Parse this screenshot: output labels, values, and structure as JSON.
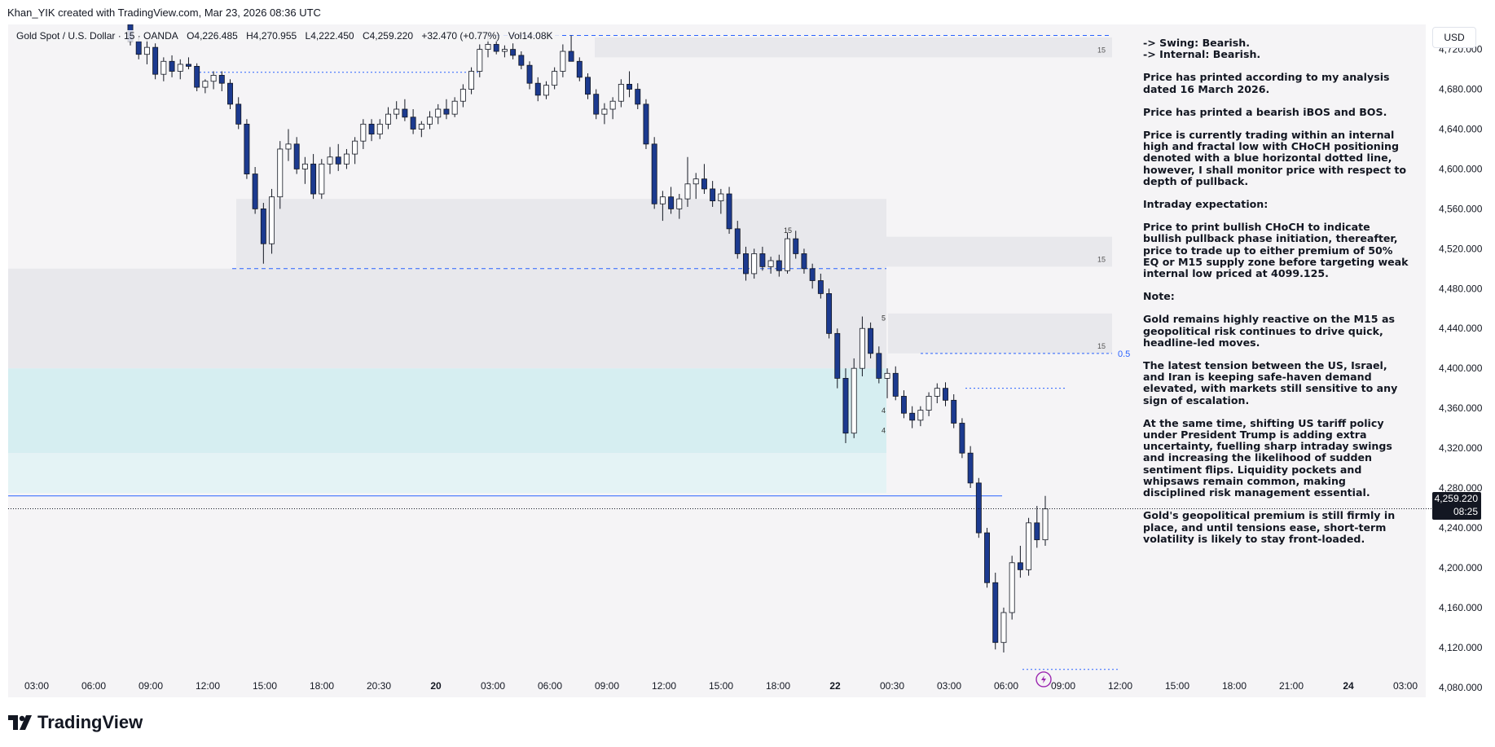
{
  "header": {
    "credit": "Khan_YIK created with TradingView.com, Mar 23, 2026 08:36 UTC"
  },
  "legend": {
    "symbol": "Gold Spot / U.S. Dollar · 15 · OANDA",
    "open": "O4,226.485",
    "high": "H4,270.955",
    "low": "L4,222.450",
    "close": "C4,259.220",
    "change": "+32.470 (+0.77%)",
    "volume": "Vol14.08K"
  },
  "currency_button": "USD",
  "price_tag": {
    "price": "4,259.220",
    "countdown": "08:25"
  },
  "footer": {
    "brand": "TradingView"
  },
  "notes": [
    "-> Swing: Bearish.\n-> Internal: Bearish.",
    "Price has printed according to my analysis dated 16 March 2026.",
    "Price has printed a bearish iBOS and BOS.",
    "Price is currently trading within an internal high and fractal low with CHoCH positioning denoted with a blue horizontal dotted line, however, I shall monitor price with respect to depth of pullback.",
    "Intraday expectation:",
    "Price to print bullish CHoCH to indicate bullish pullback phase initiation, thereafter, price to trade up to either premium of 50% EQ or M15 supply zone before targeting weak internal low priced at 4099.125.",
    "Note:",
    "Gold remains highly reactive on the M15 as geopolitical risk continues to drive quick, headline-led moves.",
    "The latest tension between the US, Israel, and Iran is keeping safe-haven demand elevated, with markets still sensitive to any sign of escalation.",
    "At the same time, shifting US tariff policy under President Trump is adding extra uncertainty, fuelling sharp intraday swings and increasing the likelihood of sudden sentiment flips. Liquidity pockets and whipsaws remain common, making disciplined risk management essential.",
    "Gold's geopolitical premium is still firmly in place, and until tensions ease, short-term volatility is likely to stay front-loaded."
  ],
  "colors": {
    "bull": "#ffffff",
    "bear": "#1c3a8f",
    "wick": "#131722",
    "zone_gray": "#e8e8ec",
    "zone_teal": "#d6eef1",
    "zone_teal_light": "#e4f3f5",
    "line_blue": "#2962ff",
    "bg": "#f5f4f6"
  },
  "chart_data": {
    "type": "candlestick",
    "timeframe": "15",
    "y_axis": {
      "ticks": [
        4080,
        4120,
        4160,
        4200,
        4240,
        4280,
        4320,
        4360,
        4400,
        4440,
        4480,
        4520,
        4560,
        4600,
        4640,
        4680,
        4720
      ],
      "tick_labels": [
        "4,080.000",
        "4,120.000",
        "4,160.000",
        "4,200.000",
        "4,240.000",
        "4,280.000",
        "4,320.000",
        "4,360.000",
        "4,400.000",
        "4,440.000",
        "4,480.000",
        "4,520.000",
        "4,560.000",
        "4,600.000",
        "4,640.000",
        "4,680.000",
        "4,720.000"
      ],
      "ylim": [
        4070,
        4745
      ]
    },
    "x_axis": {
      "tick_labels": [
        "03:00",
        "06:00",
        "09:00",
        "12:00",
        "15:00",
        "18:00",
        "20:30",
        "20",
        "03:00",
        "06:00",
        "09:00",
        "12:00",
        "15:00",
        "18:00",
        "22",
        "00:30",
        "03:00",
        "06:00",
        "09:00",
        "12:00",
        "15:00",
        "18:00",
        "21:00",
        "24",
        "03:00"
      ],
      "bold_labels": [
        "20",
        "22",
        "24"
      ]
    },
    "current_price": 4259.22,
    "annotations": [
      {
        "type": "dashed-line",
        "price": 4734,
        "label": ""
      },
      {
        "type": "dashed-line",
        "price": 4500,
        "label": ""
      },
      {
        "type": "dotted-line",
        "price": 4697,
        "label": ""
      },
      {
        "type": "dotted-line",
        "price": 4380,
        "label": ""
      },
      {
        "type": "dotted-line",
        "price": 4098,
        "label": ""
      },
      {
        "type": "solid-line",
        "price": 4272,
        "label": ""
      },
      {
        "type": "eq-line",
        "price": 4415,
        "label": "0.5"
      },
      {
        "type": "zone",
        "top": 4732,
        "bottom": 4712,
        "label": "15"
      },
      {
        "type": "zone",
        "top": 4532,
        "bottom": 4502,
        "label": "15"
      },
      {
        "type": "zone",
        "top": 4455,
        "bottom": 4415,
        "label": "15"
      },
      {
        "type": "zone",
        "top": 4570,
        "bottom": 4500,
        "label": ""
      },
      {
        "type": "zone",
        "top": 4500,
        "bottom": 4400,
        "label": ""
      },
      {
        "type": "demand-zone",
        "top": 4400,
        "bottom": 4315,
        "label": ""
      },
      {
        "type": "demand-zone",
        "top": 4315,
        "bottom": 4275,
        "label": ""
      }
    ],
    "markers": [
      {
        "price": 4536,
        "text": "15"
      },
      {
        "price": 4448,
        "text": "5"
      },
      {
        "price": 4355,
        "text": "4"
      },
      {
        "price": 4335,
        "text": "4"
      }
    ],
    "candles_ohlc": [
      [
        4745,
        4748,
        4724,
        4728
      ],
      [
        4728,
        4732,
        4710,
        4715
      ],
      [
        4715,
        4730,
        4705,
        4722
      ],
      [
        4722,
        4726,
        4690,
        4695
      ],
      [
        4695,
        4712,
        4688,
        4708
      ],
      [
        4708,
        4714,
        4692,
        4698
      ],
      [
        4698,
        4710,
        4690,
        4705
      ],
      [
        4705,
        4712,
        4700,
        4703
      ],
      [
        4703,
        4706,
        4678,
        4682
      ],
      [
        4682,
        4690,
        4676,
        4688
      ],
      [
        4688,
        4698,
        4680,
        4694
      ],
      [
        4694,
        4698,
        4678,
        4686
      ],
      [
        4686,
        4690,
        4660,
        4665
      ],
      [
        4665,
        4672,
        4640,
        4645
      ],
      [
        4645,
        4650,
        4590,
        4595
      ],
      [
        4595,
        4602,
        4555,
        4560
      ],
      [
        4560,
        4566,
        4505,
        4525
      ],
      [
        4525,
        4580,
        4515,
        4572
      ],
      [
        4572,
        4628,
        4560,
        4620
      ],
      [
        4620,
        4640,
        4608,
        4625
      ],
      [
        4625,
        4632,
        4595,
        4600
      ],
      [
        4600,
        4612,
        4585,
        4605
      ],
      [
        4605,
        4615,
        4570,
        4575
      ],
      [
        4575,
        4610,
        4570,
        4605
      ],
      [
        4605,
        4622,
        4595,
        4612
      ],
      [
        4612,
        4625,
        4598,
        4605
      ],
      [
        4605,
        4620,
        4600,
        4615
      ],
      [
        4615,
        4632,
        4605,
        4628
      ],
      [
        4628,
        4650,
        4620,
        4645
      ],
      [
        4645,
        4650,
        4628,
        4635
      ],
      [
        4635,
        4650,
        4630,
        4645
      ],
      [
        4645,
        4662,
        4640,
        4655
      ],
      [
        4655,
        4668,
        4650,
        4660
      ],
      [
        4660,
        4670,
        4648,
        4652
      ],
      [
        4652,
        4660,
        4635,
        4640
      ],
      [
        4640,
        4648,
        4632,
        4645
      ],
      [
        4645,
        4658,
        4640,
        4652
      ],
      [
        4652,
        4665,
        4645,
        4660
      ],
      [
        4660,
        4670,
        4650,
        4655
      ],
      [
        4655,
        4672,
        4652,
        4668
      ],
      [
        4668,
        4685,
        4662,
        4680
      ],
      [
        4680,
        4702,
        4675,
        4698
      ],
      [
        4698,
        4725,
        4692,
        4720
      ],
      [
        4720,
        4736,
        4712,
        4725
      ],
      [
        4725,
        4730,
        4715,
        4718
      ],
      [
        4718,
        4724,
        4712,
        4720
      ],
      [
        4720,
        4726,
        4710,
        4714
      ],
      [
        4714,
        4718,
        4700,
        4704
      ],
      [
        4704,
        4708,
        4680,
        4686
      ],
      [
        4686,
        4692,
        4668,
        4674
      ],
      [
        4674,
        4688,
        4670,
        4684
      ],
      [
        4684,
        4702,
        4680,
        4698
      ],
      [
        4698,
        4725,
        4692,
        4718
      ],
      [
        4718,
        4734,
        4712,
        4708
      ],
      [
        4708,
        4712,
        4688,
        4692
      ],
      [
        4692,
        4696,
        4670,
        4675
      ],
      [
        4675,
        4680,
        4650,
        4655
      ],
      [
        4655,
        4666,
        4645,
        4660
      ],
      [
        4660,
        4672,
        4650,
        4668
      ],
      [
        4668,
        4690,
        4662,
        4685
      ],
      [
        4685,
        4698,
        4672,
        4680
      ],
      [
        4680,
        4686,
        4660,
        4665
      ],
      [
        4665,
        4670,
        4620,
        4625
      ],
      [
        4625,
        4632,
        4560,
        4565
      ],
      [
        4565,
        4578,
        4548,
        4572
      ],
      [
        4572,
        4582,
        4555,
        4560
      ],
      [
        4560,
        4575,
        4550,
        4570
      ],
      [
        4570,
        4612,
        4562,
        4585
      ],
      [
        4585,
        4596,
        4570,
        4590
      ],
      [
        4590,
        4605,
        4575,
        4580
      ],
      [
        4580,
        4588,
        4562,
        4568
      ],
      [
        4568,
        4580,
        4555,
        4575
      ],
      [
        4575,
        4582,
        4535,
        4540
      ],
      [
        4540,
        4548,
        4510,
        4515
      ],
      [
        4515,
        4522,
        4488,
        4495
      ],
      [
        4495,
        4520,
        4490,
        4515
      ],
      [
        4515,
        4522,
        4498,
        4502
      ],
      [
        4502,
        4512,
        4495,
        4508
      ],
      [
        4508,
        4514,
        4492,
        4498
      ],
      [
        4498,
        4536,
        4495,
        4530
      ],
      [
        4530,
        4538,
        4510,
        4515
      ],
      [
        4515,
        4520,
        4495,
        4500
      ],
      [
        4500,
        4505,
        4480,
        4488
      ],
      [
        4488,
        4495,
        4470,
        4475
      ],
      [
        4475,
        4480,
        4430,
        4435
      ],
      [
        4435,
        4440,
        4380,
        4390
      ],
      [
        4390,
        4400,
        4325,
        4335
      ],
      [
        4335,
        4410,
        4330,
        4400
      ],
      [
        4400,
        4452,
        4392,
        4440
      ],
      [
        4440,
        4446,
        4410,
        4415
      ],
      [
        4415,
        4422,
        4385,
        4390
      ],
      [
        4390,
        4400,
        4370,
        4395
      ],
      [
        4395,
        4402,
        4368,
        4372
      ],
      [
        4372,
        4378,
        4350,
        4355
      ],
      [
        4355,
        4362,
        4340,
        4348
      ],
      [
        4348,
        4362,
        4342,
        4358
      ],
      [
        4358,
        4376,
        4352,
        4372
      ],
      [
        4372,
        4385,
        4365,
        4380
      ],
      [
        4380,
        4386,
        4362,
        4368
      ],
      [
        4368,
        4374,
        4340,
        4345
      ],
      [
        4345,
        4350,
        4310,
        4315
      ],
      [
        4315,
        4322,
        4280,
        4285
      ],
      [
        4285,
        4290,
        4230,
        4235
      ],
      [
        4235,
        4240,
        4180,
        4185
      ],
      [
        4185,
        4195,
        4118,
        4125
      ],
      [
        4125,
        4160,
        4115,
        4155
      ],
      [
        4155,
        4212,
        4148,
        4205
      ],
      [
        4205,
        4222,
        4190,
        4198
      ],
      [
        4198,
        4250,
        4192,
        4245
      ],
      [
        4245,
        4262,
        4220,
        4228
      ],
      [
        4228,
        4272,
        4222,
        4259
      ]
    ]
  }
}
